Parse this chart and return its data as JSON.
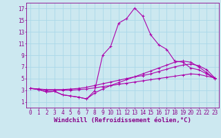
{
  "xlabel": "Windchill (Refroidissement éolien,°C)",
  "background_color": "#cce8f0",
  "line_color": "#aa00aa",
  "xlim": [
    -0.5,
    23.5
  ],
  "ylim": [
    0,
    18
  ],
  "yticks": [
    1,
    3,
    5,
    7,
    9,
    11,
    13,
    15,
    17
  ],
  "xticks": [
    0,
    1,
    2,
    3,
    4,
    5,
    6,
    7,
    8,
    9,
    10,
    11,
    12,
    13,
    14,
    15,
    16,
    17,
    18,
    19,
    20,
    21,
    22,
    23
  ],
  "lines": [
    {
      "x": [
        0,
        1,
        2,
        3,
        4,
        5,
        6,
        7,
        8,
        9,
        10,
        11,
        12,
        13,
        14,
        15,
        16,
        17,
        18,
        19,
        20,
        21,
        22,
        23
      ],
      "y": [
        3.3,
        3.1,
        2.7,
        2.8,
        2.2,
        2.0,
        1.8,
        1.5,
        2.9,
        9.0,
        10.5,
        14.5,
        15.3,
        17.1,
        15.7,
        12.5,
        10.8,
        10.0,
        8.0,
        7.8,
        6.8,
        6.5,
        5.8,
        5.0
      ]
    },
    {
      "x": [
        0,
        1,
        2,
        3,
        4,
        5,
        6,
        7,
        8,
        9,
        10,
        11,
        12,
        13,
        14,
        15,
        16,
        17,
        18,
        19,
        20,
        21,
        22,
        23
      ],
      "y": [
        3.3,
        3.2,
        3.1,
        3.1,
        3.1,
        3.2,
        3.3,
        3.5,
        3.8,
        4.1,
        4.4,
        4.7,
        5.0,
        5.3,
        5.5,
        5.8,
        6.2,
        6.6,
        7.0,
        7.3,
        7.5,
        7.2,
        6.5,
        5.1
      ]
    },
    {
      "x": [
        0,
        1,
        2,
        3,
        4,
        5,
        6,
        7,
        8,
        9,
        10,
        11,
        12,
        13,
        14,
        15,
        16,
        17,
        18,
        19,
        20,
        21,
        22,
        23
      ],
      "y": [
        3.3,
        3.2,
        3.0,
        3.0,
        3.0,
        3.0,
        3.1,
        3.2,
        3.4,
        3.6,
        3.8,
        4.0,
        4.2,
        4.4,
        4.6,
        4.8,
        5.0,
        5.2,
        5.4,
        5.6,
        5.8,
        5.7,
        5.4,
        5.1
      ]
    },
    {
      "x": [
        0,
        1,
        2,
        3,
        4,
        5,
        6,
        7,
        8,
        9,
        10,
        11,
        12,
        13,
        14,
        15,
        16,
        17,
        18,
        19,
        20,
        21,
        22,
        23
      ],
      "y": [
        3.3,
        3.1,
        2.7,
        2.8,
        2.2,
        2.0,
        1.8,
        1.5,
        2.5,
        3.2,
        3.8,
        4.3,
        4.8,
        5.3,
        5.8,
        6.3,
        6.8,
        7.3,
        7.8,
        8.0,
        7.8,
        7.0,
        6.0,
        5.0
      ]
    }
  ],
  "grid_color": "#aad8e8",
  "axis_color": "#880088",
  "font_color": "#880088",
  "font": "monospace",
  "fontsize_ticks": 5.5,
  "fontsize_xlabel": 6.5
}
